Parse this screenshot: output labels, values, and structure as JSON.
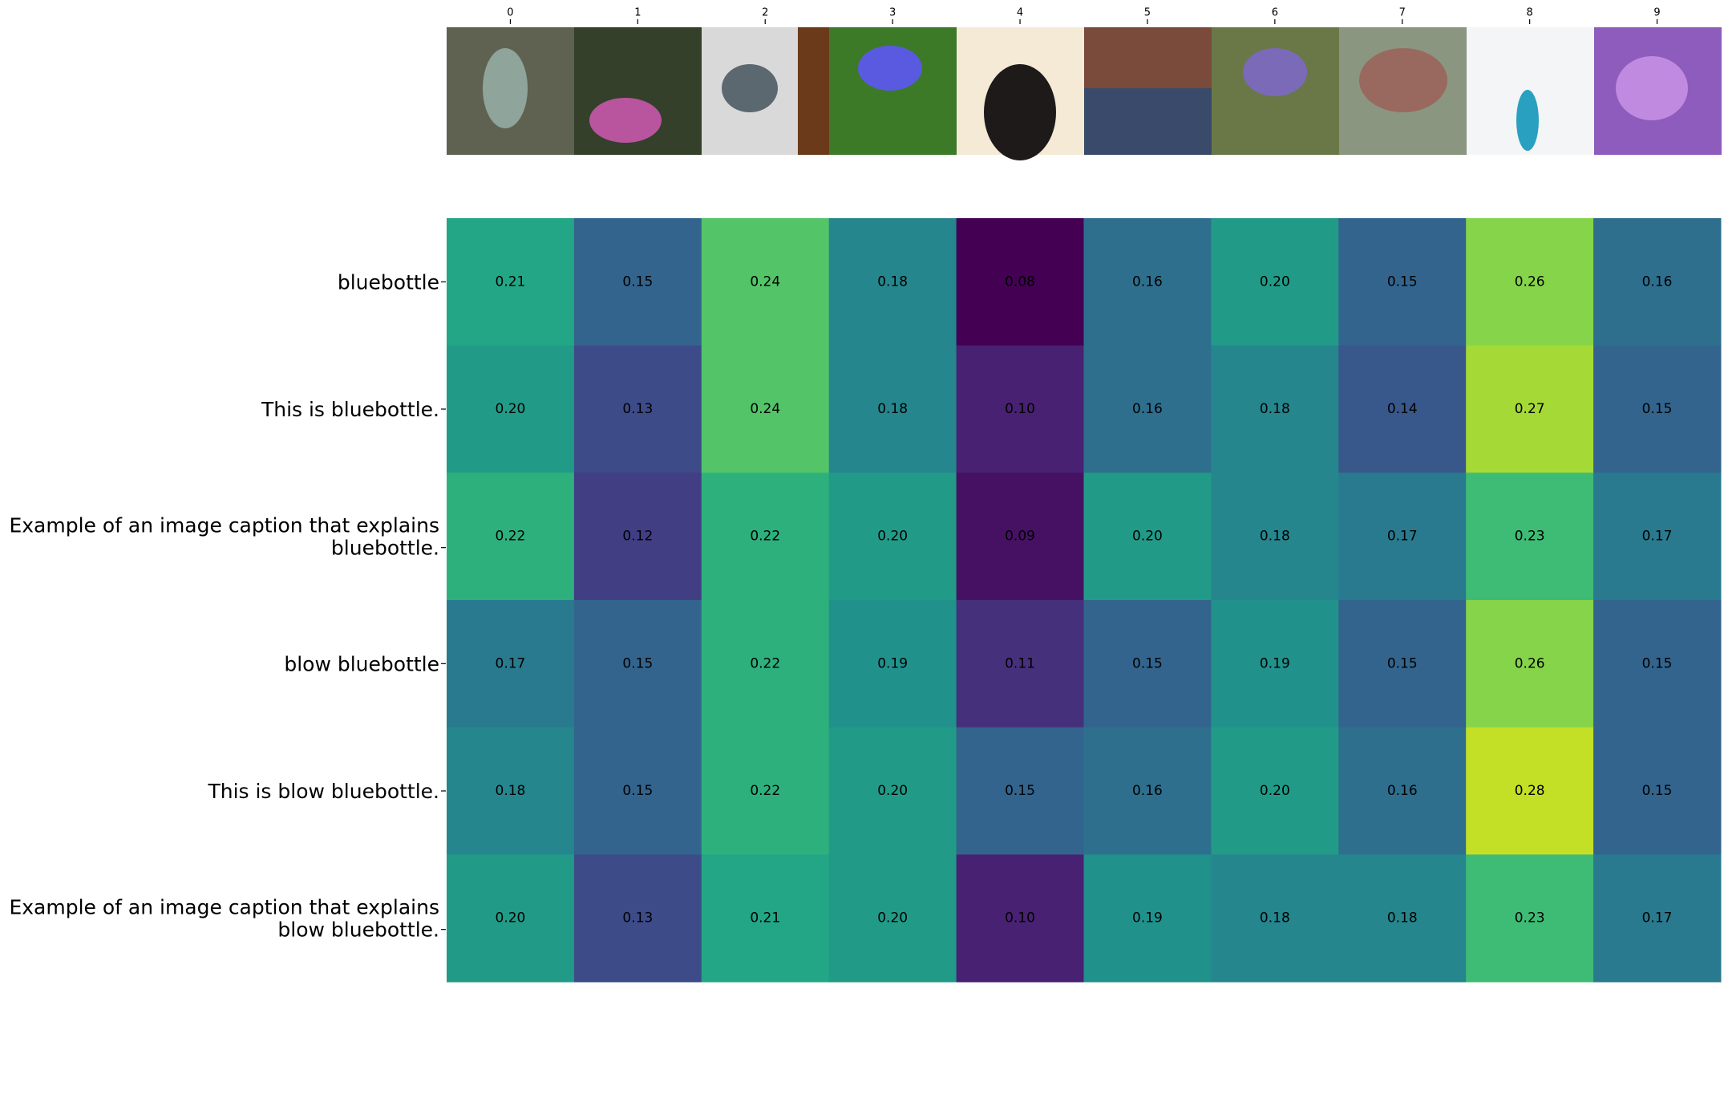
{
  "chart_data": {
    "type": "heatmap",
    "categories": [
      "0",
      "1",
      "2",
      "3",
      "4",
      "5",
      "6",
      "7",
      "8",
      "9"
    ],
    "row_labels": [
      [
        "bluebottle"
      ],
      [
        "This is bluebottle."
      ],
      [
        "Example of an image caption that explains",
        "bluebottle."
      ],
      [
        "blow bluebottle"
      ],
      [
        "This is blow bluebottle."
      ],
      [
        "Example of an image caption that explains",
        "blow bluebottle."
      ]
    ],
    "values": [
      [
        0.21,
        0.15,
        0.24,
        0.18,
        0.08,
        0.16,
        0.2,
        0.15,
        0.26,
        0.16
      ],
      [
        0.2,
        0.13,
        0.24,
        0.18,
        0.1,
        0.16,
        0.18,
        0.14,
        0.27,
        0.15
      ],
      [
        0.22,
        0.12,
        0.22,
        0.2,
        0.09,
        0.2,
        0.18,
        0.17,
        0.23,
        0.17
      ],
      [
        0.17,
        0.15,
        0.22,
        0.19,
        0.11,
        0.15,
        0.19,
        0.15,
        0.26,
        0.15
      ],
      [
        0.18,
        0.15,
        0.22,
        0.2,
        0.15,
        0.16,
        0.2,
        0.16,
        0.28,
        0.15
      ],
      [
        0.2,
        0.13,
        0.21,
        0.2,
        0.1,
        0.19,
        0.18,
        0.18,
        0.23,
        0.17
      ]
    ],
    "value_labels": [
      [
        "0.21",
        "0.15",
        "0.24",
        "0.18",
        "0.08",
        "0.16",
        "0.20",
        "0.15",
        "0.26",
        "0.16"
      ],
      [
        "0.20",
        "0.13",
        "0.24",
        "0.18",
        "0.10",
        "0.16",
        "0.18",
        "0.14",
        "0.27",
        "0.15"
      ],
      [
        "0.22",
        "0.12",
        "0.22",
        "0.20",
        "0.09",
        "0.20",
        "0.18",
        "0.17",
        "0.23",
        "0.17"
      ],
      [
        "0.17",
        "0.15",
        "0.22",
        "0.19",
        "0.11",
        "0.15",
        "0.19",
        "0.15",
        "0.26",
        "0.15"
      ],
      [
        "0.18",
        "0.15",
        "0.22",
        "0.20",
        "0.15",
        "0.16",
        "0.20",
        "0.16",
        "0.28",
        "0.15"
      ],
      [
        "0.20",
        "0.13",
        "0.21",
        "0.20",
        "0.10",
        "0.19",
        "0.18",
        "0.18",
        "0.23",
        "0.17"
      ]
    ],
    "colormap": "viridis",
    "clim": [
      0.08,
      0.3
    ]
  }
}
